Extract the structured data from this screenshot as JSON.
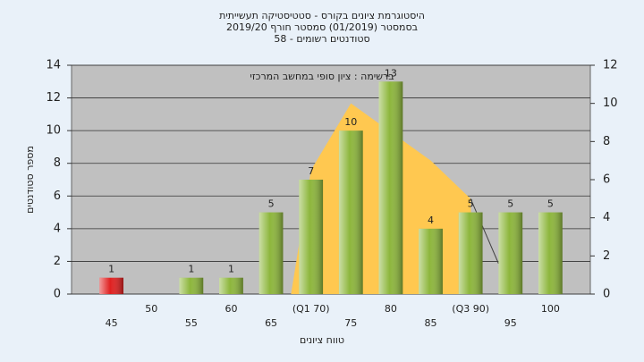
{
  "chart_data": {
    "type": "bar",
    "title": [
      "היסטוגרמת ציונים בקורס - סטטיסטיקה תעשייתית",
      "בסמסטר (01/2019) סמסטר חורף 2019/20",
      "סטודנטים רשומים - 58"
    ],
    "annotation": "ברשימה : ציון סופי במחשב המרכזי",
    "x_label": "טווח ציונים",
    "y_label": "מספר סטודנטים",
    "categories": [
      "45",
      "50",
      "55",
      "60",
      "65",
      "(Q1 70)",
      "75",
      "80",
      "85",
      "(Q3 90)",
      "95",
      "100"
    ],
    "values": [
      1,
      null,
      1,
      1,
      5,
      7,
      10,
      13,
      4,
      5,
      5,
      5
    ],
    "colors": [
      "#e02020",
      "#8db63c",
      "#8db63c",
      "#8db63c",
      "#8db63c",
      "#8db63c",
      "#8db63c",
      "#8db63c",
      "#8db63c",
      "#8db63c",
      "#8db63c",
      "#8db63c"
    ],
    "ylim": [
      0,
      14
    ],
    "yticks": [
      0,
      2,
      4,
      6,
      8,
      10,
      12,
      14
    ],
    "y2lim": [
      0,
      12
    ],
    "y2ticks": [
      0,
      2,
      4,
      6,
      8,
      10,
      12
    ],
    "xlim": [
      40,
      105
    ],
    "grid": true,
    "overlays": [
      {
        "type": "area",
        "axis": "y2",
        "color": "#ffc850",
        "x": [
          67.5,
          70,
          75,
          80,
          85,
          90,
          90.3
        ],
        "values": [
          0,
          6.5,
          10,
          8.5,
          7,
          5,
          0
        ]
      },
      {
        "type": "line",
        "axis": "y2",
        "color": "#404040",
        "x": [
          90,
          93.5
        ],
        "values": [
          5,
          1.6
        ]
      }
    ]
  }
}
